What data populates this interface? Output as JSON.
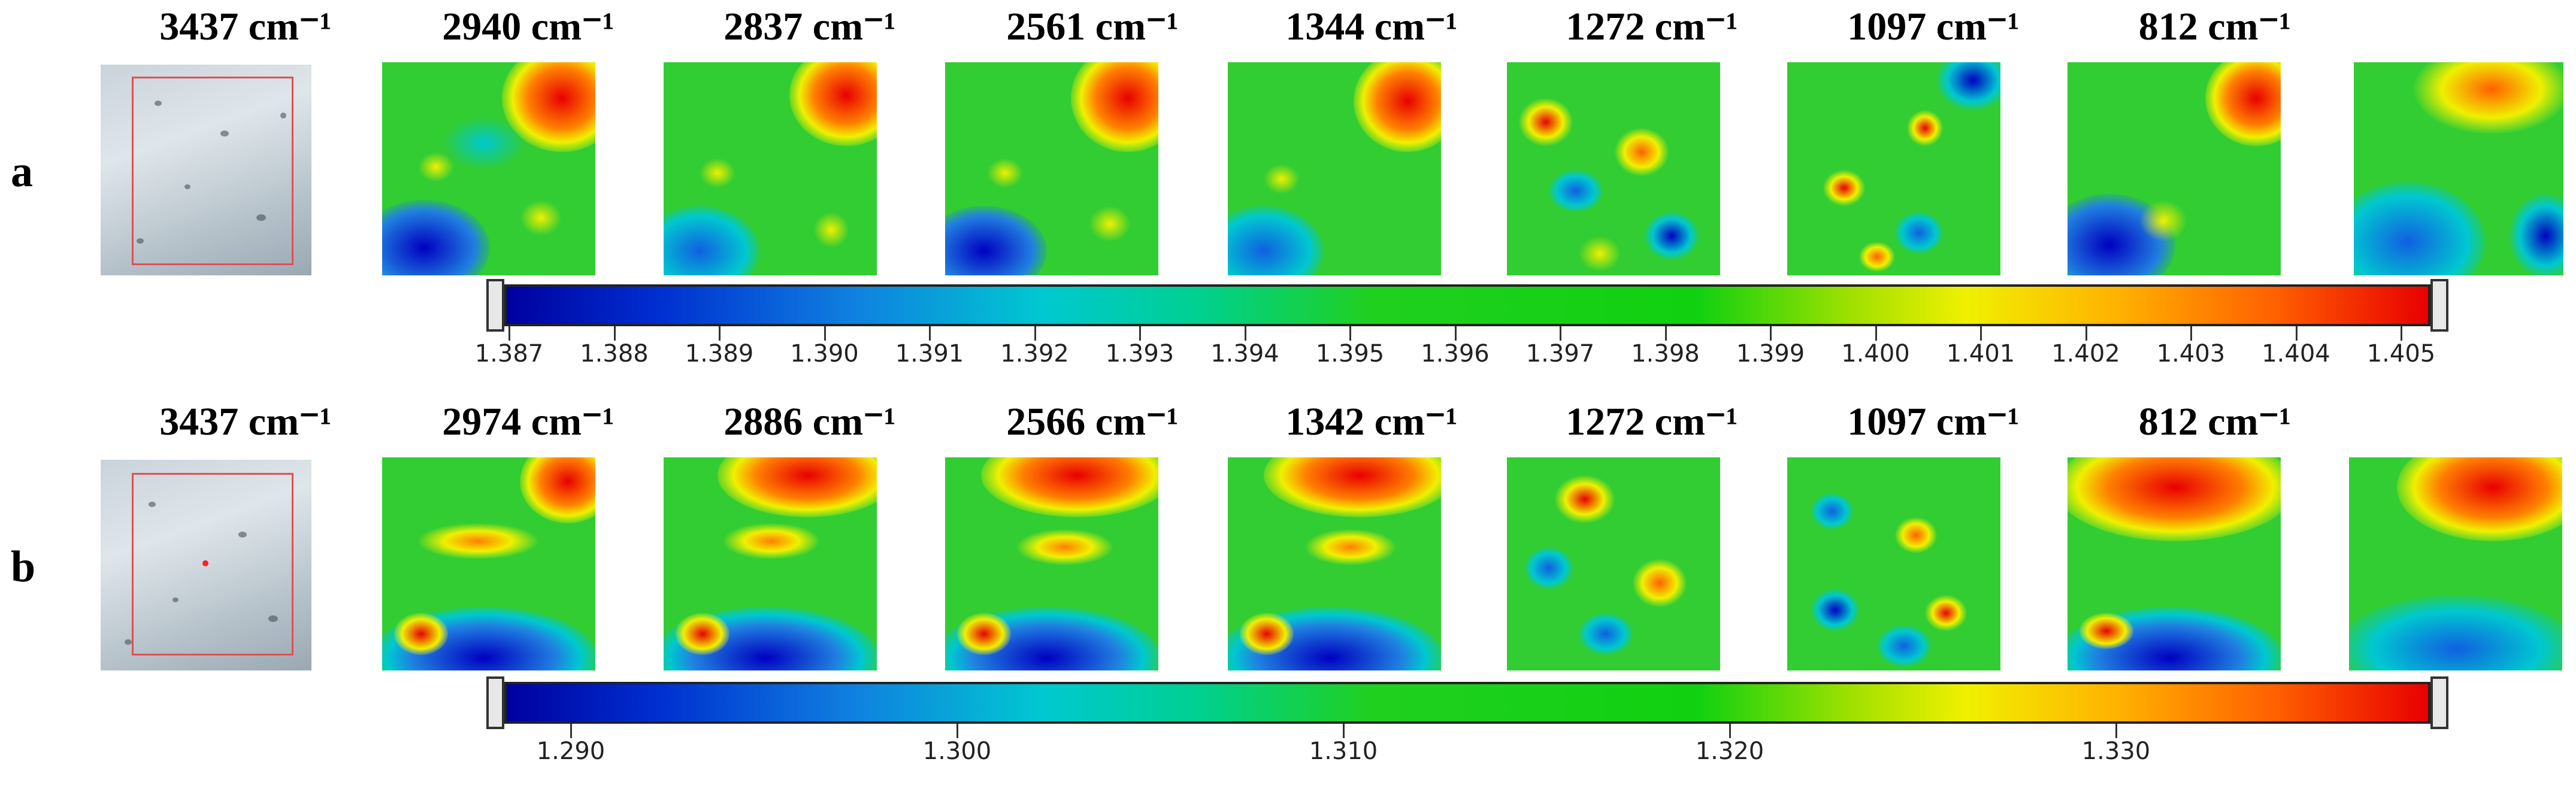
{
  "rows": [
    {
      "label": "a",
      "headers": [
        "3437 cm⁻¹",
        "2940 cm⁻¹",
        "2837 cm⁻¹",
        "2561 cm⁻¹",
        "1344 cm⁻¹",
        "1272 cm⁻¹",
        "1097 cm⁻¹",
        "812 cm⁻¹"
      ],
      "colorbar_ticks": [
        "1.387",
        "1.388",
        "1.389",
        "1.390",
        "1.391",
        "1.392",
        "1.393",
        "1.394",
        "1.395",
        "1.396",
        "1.397",
        "1.398",
        "1.399",
        "1.400",
        "1.401",
        "1.402",
        "1.403",
        "1.404",
        "1.405"
      ]
    },
    {
      "label": "b",
      "headers": [
        "3437 cm⁻¹",
        "2974 cm⁻¹",
        "2886 cm⁻¹",
        "2566 cm⁻¹",
        "1342 cm⁻¹",
        "1272 cm⁻¹",
        "1097 cm⁻¹",
        "812 cm⁻¹"
      ],
      "colorbar_ticks": [
        "1.290",
        "1.300",
        "1.310",
        "1.320",
        "1.330"
      ]
    }
  ],
  "colors": {
    "low": "#0000a0",
    "mid": "#20d020",
    "high": "#e80000"
  }
}
